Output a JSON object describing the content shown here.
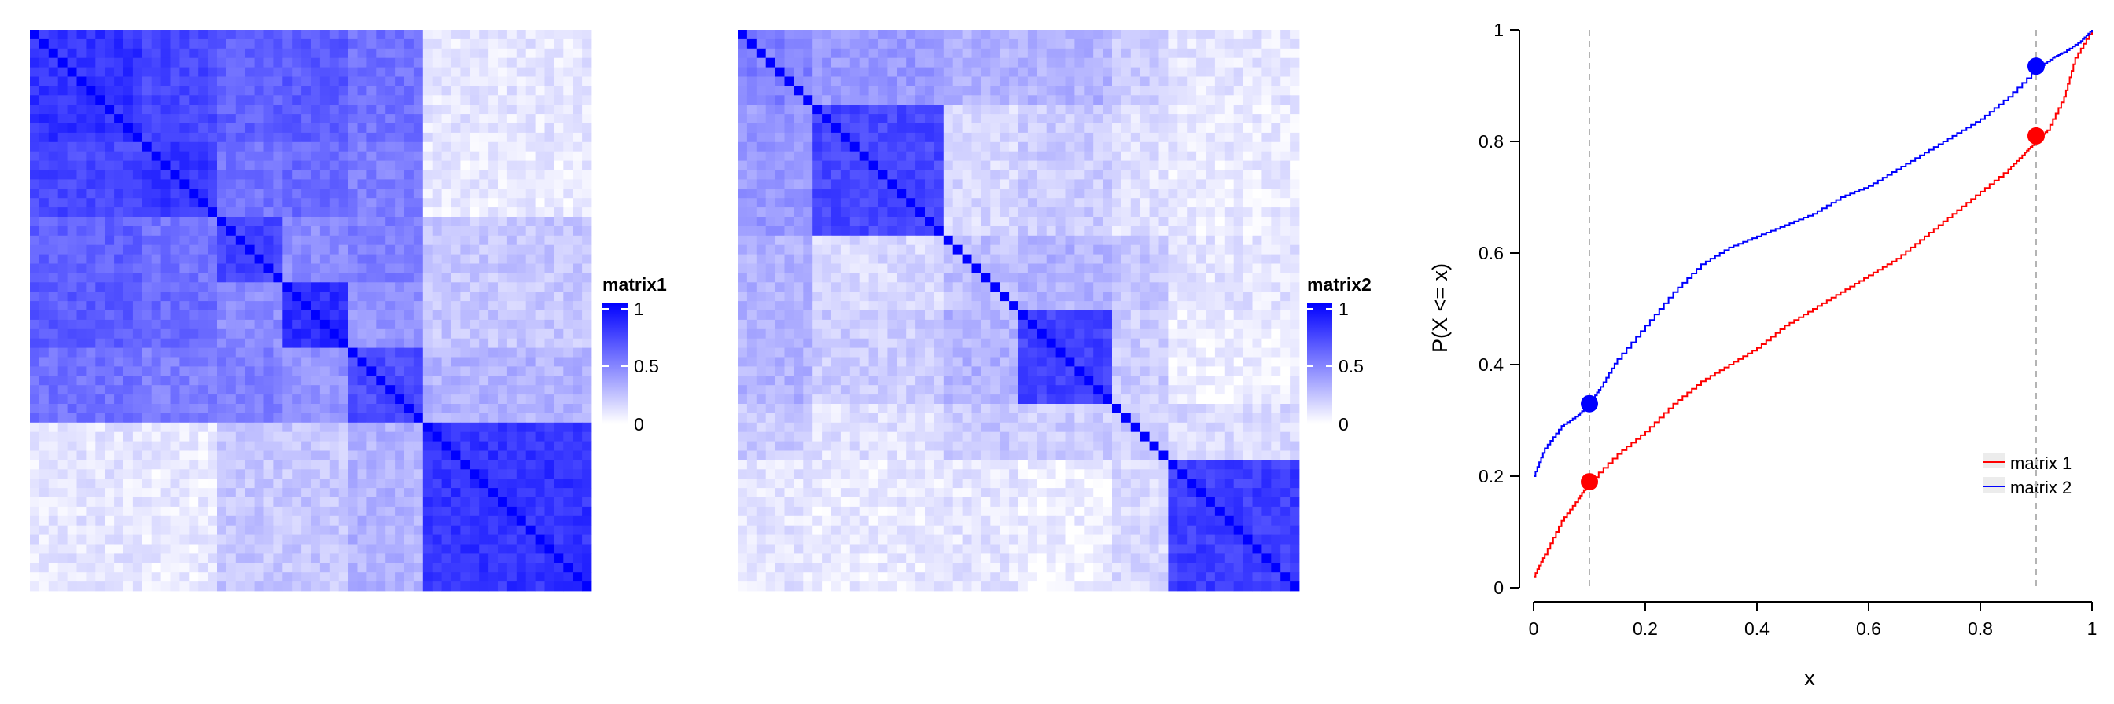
{
  "colors": {
    "low": "#ffffff",
    "high": "#0000ff",
    "red": "#ff0000",
    "blue": "#0000ff",
    "guide": "#b4b4b4"
  },
  "chart_data": [
    {
      "type": "heatmap",
      "name": "matrix1",
      "legend_title": "matrix1",
      "legend_ticks": [
        "1",
        "0.5",
        "0"
      ],
      "n": 60,
      "groups": [
        12,
        8,
        7,
        7,
        8,
        18
      ],
      "within": [
        0.8,
        0.78,
        0.72,
        0.82,
        0.7,
        0.8
      ],
      "between": [
        [
          null,
          0.72,
          0.62,
          0.64,
          0.55,
          0.1
        ],
        [
          null,
          null,
          0.55,
          0.58,
          0.5,
          0.08
        ],
        [
          null,
          null,
          null,
          0.45,
          0.5,
          0.22
        ],
        [
          null,
          null,
          null,
          null,
          0.42,
          0.22
        ],
        [
          null,
          null,
          null,
          null,
          null,
          0.3
        ],
        [
          null,
          null,
          null,
          null,
          null,
          null
        ]
      ],
      "range": [
        0,
        1
      ]
    },
    {
      "type": "heatmap",
      "name": "matrix2",
      "legend_title": "matrix2",
      "legend_ticks": [
        "1",
        "0.5",
        "0"
      ],
      "n": 60,
      "groups": [
        8,
        14,
        8,
        10,
        6,
        14
      ],
      "within": [
        0.5,
        0.72,
        0.25,
        0.74,
        0.2,
        0.76
      ],
      "between": [
        [
          null,
          0.4,
          0.3,
          0.3,
          0.2,
          0.1
        ],
        [
          null,
          null,
          0.15,
          0.2,
          0.12,
          0.08
        ],
        [
          null,
          null,
          null,
          0.3,
          0.22,
          0.1
        ],
        [
          null,
          null,
          null,
          null,
          0.2,
          0.06
        ],
        [
          null,
          null,
          null,
          null,
          null,
          0.15
        ],
        [
          null,
          null,
          null,
          null,
          null,
          null
        ]
      ],
      "range": [
        0,
        1
      ]
    },
    {
      "type": "line",
      "xlabel": "x",
      "ylabel": "P(X <= x)",
      "xlim": [
        0,
        1
      ],
      "ylim": [
        0,
        1
      ],
      "x_ticks": [
        "0",
        "0.2",
        "0.4",
        "0.6",
        "0.8",
        "1"
      ],
      "y_ticks": [
        "0",
        "0.2",
        "0.4",
        "0.6",
        "0.8",
        "1"
      ],
      "vlines": [
        0.1,
        0.9
      ],
      "series": [
        {
          "name": "matrix 1",
          "color": "#ff0000",
          "x": [
            0,
            0.02,
            0.05,
            0.08,
            0.1,
            0.15,
            0.2,
            0.25,
            0.3,
            0.35,
            0.4,
            0.45,
            0.5,
            0.55,
            0.6,
            0.65,
            0.7,
            0.75,
            0.8,
            0.85,
            0.88,
            0.9,
            0.92,
            0.95,
            0.97,
            1.0
          ],
          "y": [
            0.02,
            0.06,
            0.12,
            0.16,
            0.19,
            0.24,
            0.28,
            0.33,
            0.37,
            0.4,
            0.43,
            0.47,
            0.5,
            0.53,
            0.56,
            0.59,
            0.63,
            0.67,
            0.71,
            0.75,
            0.78,
            0.8,
            0.82,
            0.88,
            0.95,
            1.0
          ]
        },
        {
          "name": "matrix 2",
          "color": "#0000ff",
          "x": [
            0,
            0.02,
            0.05,
            0.08,
            0.1,
            0.12,
            0.15,
            0.2,
            0.25,
            0.3,
            0.35,
            0.4,
            0.45,
            0.5,
            0.55,
            0.6,
            0.65,
            0.7,
            0.75,
            0.8,
            0.85,
            0.9,
            0.93,
            0.95,
            0.98,
            1.0
          ],
          "y": [
            0.2,
            0.25,
            0.29,
            0.31,
            0.33,
            0.36,
            0.41,
            0.47,
            0.53,
            0.58,
            0.61,
            0.63,
            0.65,
            0.67,
            0.7,
            0.72,
            0.75,
            0.78,
            0.81,
            0.84,
            0.88,
            0.93,
            0.95,
            0.96,
            0.98,
            1.0
          ]
        }
      ],
      "points": [
        {
          "series": "matrix 1",
          "x": 0.1,
          "y": 0.19,
          "color": "#ff0000"
        },
        {
          "series": "matrix 1",
          "x": 0.9,
          "y": 0.81,
          "color": "#ff0000"
        },
        {
          "series": "matrix 2",
          "x": 0.1,
          "y": 0.33,
          "color": "#0000ff"
        },
        {
          "series": "matrix 2",
          "x": 0.9,
          "y": 0.935,
          "color": "#0000ff"
        }
      ],
      "legend": {
        "placement": "bottom-right",
        "entries": [
          "matrix 1",
          "matrix 2"
        ]
      },
      "grid": false
    }
  ]
}
